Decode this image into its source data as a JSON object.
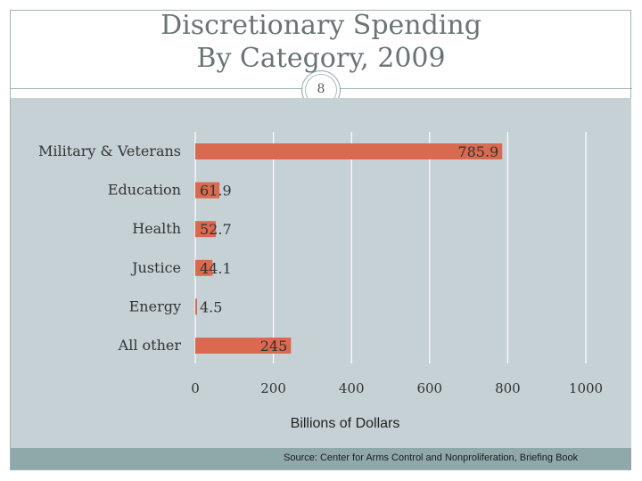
{
  "slide": {
    "title_line1": "Discretionary Spending",
    "title_line2": "By Category, 2009",
    "number": "8",
    "source": "Source: Center for Arms Control and Nonproliferation, Briefing Book"
  },
  "colors": {
    "bar": "#d9694f",
    "plot_background": "#c6d1d6",
    "gridline": "#ffffff",
    "source_bar": "#8fa9ab"
  },
  "chart_data": {
    "type": "bar",
    "orientation": "horizontal",
    "title": "Discretionary Spending By Category, 2009",
    "xlabel": "Billions of Dollars",
    "ylabel": "",
    "categories": [
      "Military & Veterans",
      "Education",
      "Health",
      "Justice",
      "Energy",
      "All other"
    ],
    "values": [
      785.9,
      61.9,
      52.7,
      44.1,
      4.5,
      245
    ],
    "value_labels": [
      "785.9",
      "61.9",
      "52.7",
      "44.1",
      "4.5",
      "245"
    ],
    "xlim": [
      0,
      1000
    ],
    "xticks": [
      0,
      200,
      400,
      600,
      800,
      1000
    ],
    "xtick_labels": [
      "0",
      "200",
      "400",
      "600",
      "800",
      "1000"
    ],
    "grid": true,
    "legend": "none"
  }
}
